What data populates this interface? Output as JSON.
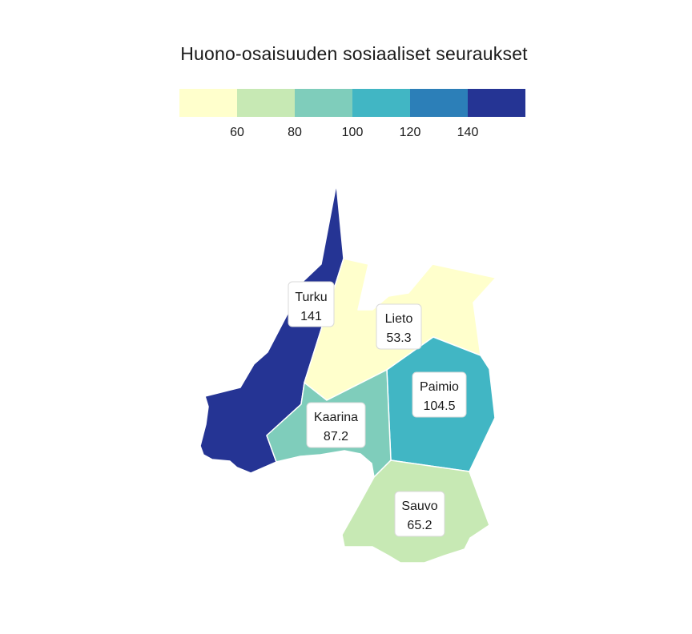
{
  "title": "Huono-osaisuuden sosiaaliset seuraukset",
  "legend": {
    "bins": [
      {
        "color": "#ffffcc"
      },
      {
        "color": "#c7e9b4"
      },
      {
        "color": "#7fcdbb"
      },
      {
        "color": "#41b6c4"
      },
      {
        "color": "#2c7fb8"
      },
      {
        "color": "#253494"
      }
    ],
    "ticks": [
      "60",
      "80",
      "100",
      "120",
      "140"
    ]
  },
  "map": {
    "regions": [
      {
        "name": "Turku",
        "value": "141",
        "color": "#253494"
      },
      {
        "name": "Lieto",
        "value": "53.3",
        "color": "#ffffcc"
      },
      {
        "name": "Paimio",
        "value": "104.5",
        "color": "#41b6c4"
      },
      {
        "name": "Kaarina",
        "value": "87.2",
        "color": "#7fcdbb"
      },
      {
        "name": "Sauvo",
        "value": "65.2",
        "color": "#c7e9b4"
      }
    ]
  }
}
